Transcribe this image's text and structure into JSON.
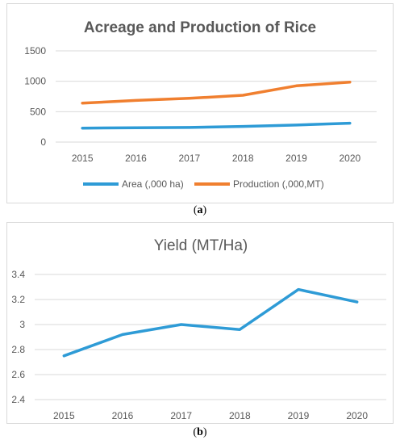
{
  "chart_data": [
    {
      "type": "line",
      "title": "Acreage and  Production  of Rice",
      "categories": [
        "2015",
        "2016",
        "2017",
        "2018",
        "2019",
        "2020"
      ],
      "yticks": [
        "0",
        "500",
        "1000",
        "1500"
      ],
      "ylim": [
        0,
        1500
      ],
      "grid": true,
      "legend_position": "bottom",
      "series": [
        {
          "name": "Area (,000 ha)",
          "color": "#2e9bd6",
          "values": [
            230,
            235,
            240,
            258,
            280,
            310
          ]
        },
        {
          "name": "Production (,000,MT)",
          "color": "#f07f2f",
          "values": [
            640,
            685,
            720,
            770,
            925,
            985
          ]
        }
      ]
    },
    {
      "type": "line",
      "title": "Yield (MT/Ha)",
      "categories": [
        "2015",
        "2016",
        "2017",
        "2018",
        "2019",
        "2020"
      ],
      "yticks": [
        "2.4",
        "2.6",
        "2.8",
        "3",
        "3.2",
        "3.4"
      ],
      "ylim": [
        2.4,
        3.4
      ],
      "grid": true,
      "series": [
        {
          "color": "#2e9bd6",
          "values": [
            2.75,
            2.92,
            3.0,
            2.96,
            3.28,
            3.18
          ]
        }
      ]
    }
  ],
  "captions": {
    "a_open": "(",
    "a_letter": "a",
    "a_close": ")",
    "b_open": "(",
    "b_letter": "b",
    "b_close": ")"
  }
}
